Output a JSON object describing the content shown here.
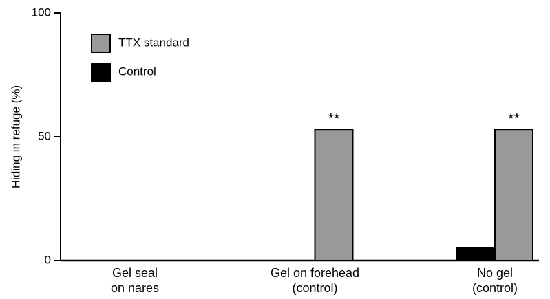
{
  "chart_data": {
    "type": "bar",
    "y_label": "Hiding in refuge (%)",
    "categories": [
      "Gel seal\non nares",
      "Gel on forehead\n(control)",
      "No gel\n(control)"
    ],
    "series": [
      {
        "name": "Control",
        "color": "#000000",
        "values": [
          0,
          0,
          5
        ]
      },
      {
        "name": "TTX standard",
        "color": "#999999",
        "values": [
          0,
          53,
          53
        ]
      }
    ],
    "annotations": [
      "**",
      "**"
    ],
    "ylim": [
      0,
      100
    ],
    "yticks": [
      0,
      50,
      100
    ]
  }
}
